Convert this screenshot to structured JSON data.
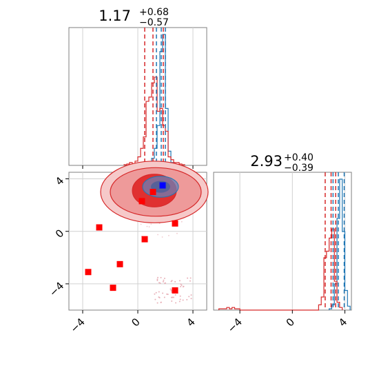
{
  "chart_data": [
    {
      "panel": "marginal-x",
      "type": "histogram",
      "title": {
        "main": "1.17",
        "plus": "+0.68",
        "minus": "−0.57"
      },
      "xlim": [
        -5,
        5
      ],
      "xticks": [
        -4,
        0,
        4
      ],
      "series": [
        {
          "color": "#1f77b4",
          "bin_edges": [
            0.4,
            0.6,
            0.8,
            1.0,
            1.2,
            1.4,
            1.6,
            1.8,
            2.0,
            2.2,
            2.4,
            2.6
          ],
          "counts": [
            0.5,
            1,
            2,
            5,
            12,
            28,
            80,
            92,
            40,
            10,
            2
          ],
          "quantiles": [
            1.35,
            1.7,
            2.0
          ]
        },
        {
          "color": "#d62728",
          "bin_edges": [
            -1.0,
            -0.8,
            -0.6,
            -0.4,
            -0.2,
            0.0,
            0.2,
            0.4,
            0.6,
            0.8,
            1.0,
            1.2,
            1.4,
            1.6,
            1.8,
            2.0,
            2.2,
            2.4,
            2.6,
            2.8,
            3.0,
            3.2,
            3.4
          ],
          "counts": [
            0.5,
            1,
            2,
            1,
            3,
            6,
            12,
            20,
            45,
            48,
            58,
            62,
            38,
            40,
            28,
            24,
            6,
            4,
            2,
            2,
            1,
            0.5
          ],
          "quantiles": [
            0.5,
            1.1,
            1.85
          ]
        }
      ]
    },
    {
      "panel": "joint",
      "type": "scatter",
      "xlim": [
        -5,
        5
      ],
      "ylim": [
        -6,
        4.5
      ],
      "xticks": [
        -4,
        0,
        4
      ],
      "yticks": [
        -4,
        0,
        4
      ],
      "contour_center": [
        1.2,
        3.0
      ],
      "blue_marker": [
        1.8,
        3.5
      ],
      "red_markers": [
        [
          -3.6,
          -3.1
        ],
        [
          -2.8,
          0.3
        ],
        [
          -1.8,
          -4.3
        ],
        [
          -1.3,
          -2.5
        ],
        [
          0.3,
          2.3
        ],
        [
          0.5,
          -0.6
        ],
        [
          1.1,
          3.0
        ],
        [
          2.7,
          0.6
        ],
        [
          2.7,
          -4.5
        ]
      ]
    },
    {
      "panel": "marginal-y",
      "type": "histogram",
      "title": {
        "main": "2.93",
        "plus": "+0.40",
        "minus": "−0.39"
      },
      "xlim": [
        -6,
        4.5
      ],
      "xticks": [
        -4,
        0,
        4
      ],
      "series": [
        {
          "color": "#1f77b4",
          "bin_edges": [
            2.8,
            3.0,
            3.2,
            3.4,
            3.6,
            3.8,
            4.0,
            4.2,
            4.4
          ],
          "counts": [
            1,
            4,
            20,
            70,
            100,
            60,
            15,
            3
          ],
          "quantiles": [
            3.1,
            3.5,
            3.95
          ]
        },
        {
          "color": "#d62728",
          "bin_edges": [
            -5.6,
            -5.4,
            -5.2,
            -5.0,
            -4.8,
            -4.6,
            -4.4,
            -4.2,
            -4.0,
            2.0,
            2.2,
            2.4,
            2.6,
            2.8,
            3.0,
            3.2,
            3.4,
            3.6,
            3.8
          ],
          "counts": [
            1,
            1,
            1,
            2,
            1,
            2,
            1,
            1,
            0,
            4,
            10,
            40,
            45,
            55,
            62,
            22,
            6,
            2
          ],
          "quantiles": [
            2.5,
            2.95,
            3.3
          ]
        }
      ]
    }
  ]
}
